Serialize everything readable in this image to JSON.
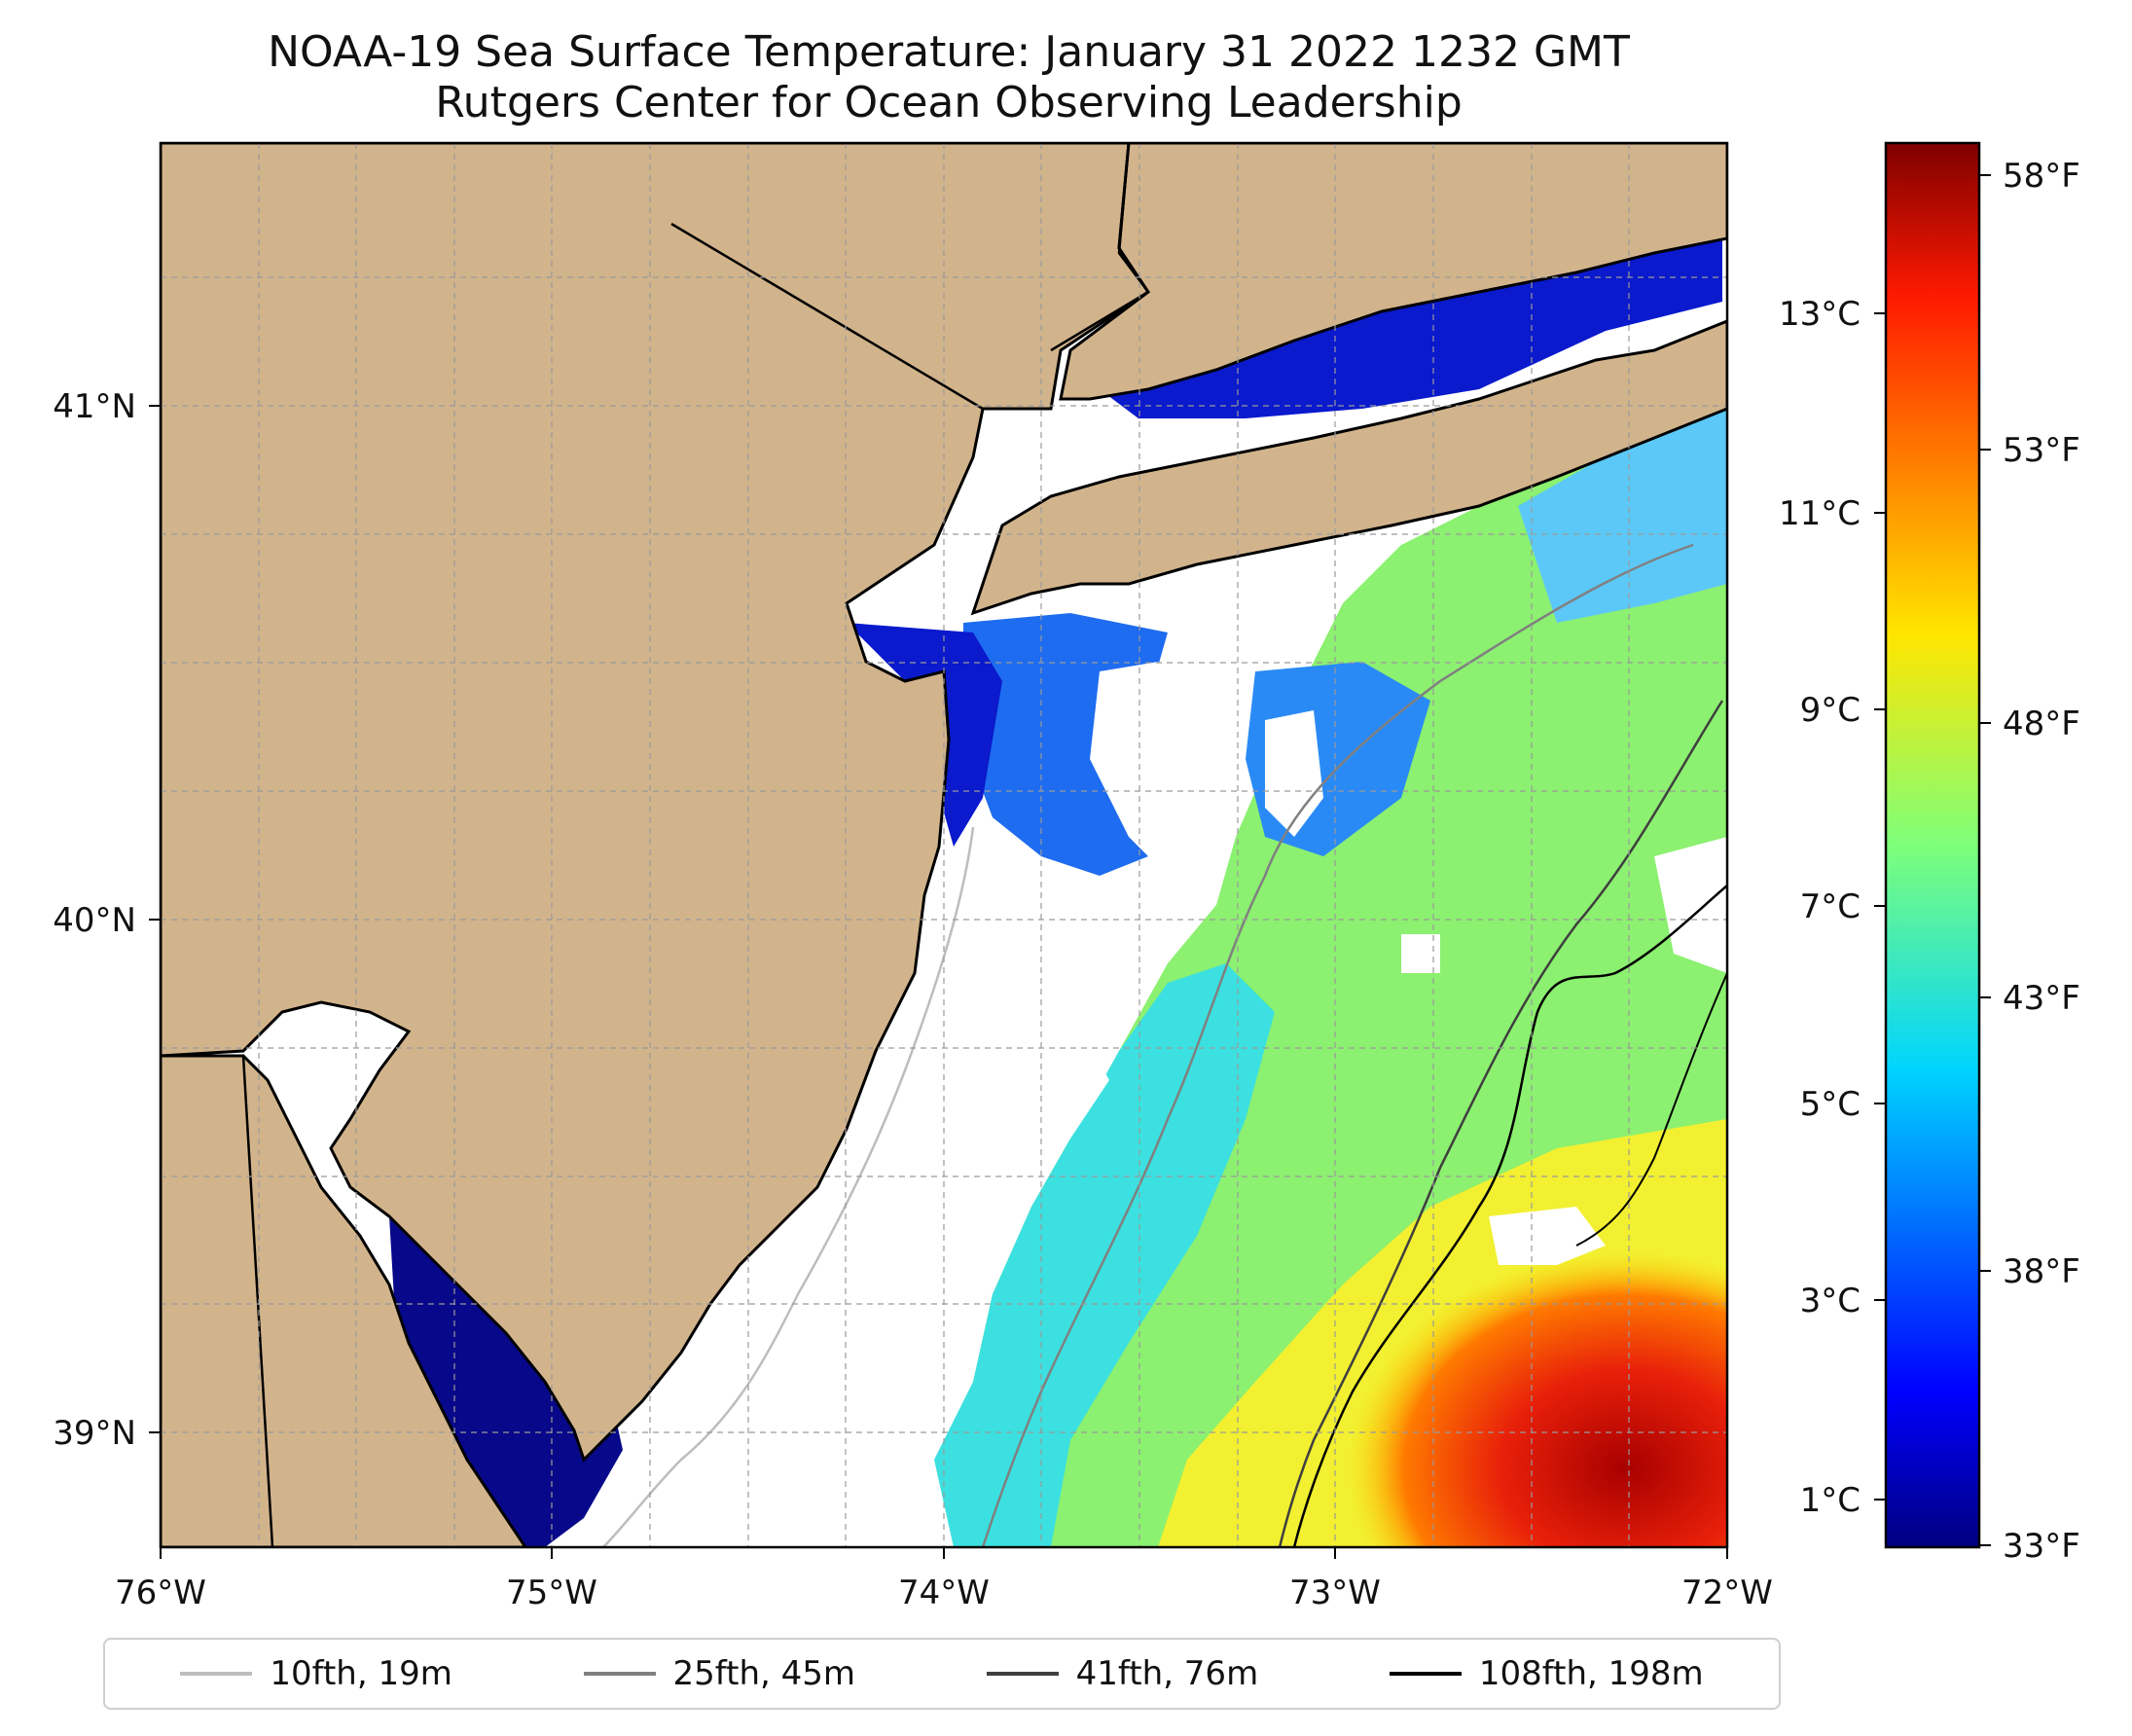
{
  "title": {
    "line1": "NOAA-19 Sea Surface Temperature: January 31 2022 1232 GMT",
    "line2": "Rutgers Center for Ocean Observing Leadership"
  },
  "map": {
    "lon_range": [
      -76,
      -72
    ],
    "lat_range": [
      38.75,
      41.55
    ],
    "lon_ticks": [
      "76°W",
      "75°W",
      "74°W",
      "73°W",
      "72°W"
    ],
    "lat_ticks": [
      "41°N",
      "40°N",
      "39°N"
    ],
    "land_color": "#D2B48C",
    "no_data_color": "#FFFFFF",
    "gridlines": true,
    "regions": "New Jersey, Long Island, Delaware Bay, NY Bight"
  },
  "colorbar": {
    "colormap": "jet",
    "celsius_ticks": [
      "13°C",
      "11°C",
      "9°C",
      "7°C",
      "5°C",
      "3°C",
      "1°C"
    ],
    "fahrenheit_ticks": [
      "58°F",
      "53°F",
      "48°F",
      "43°F",
      "38°F",
      "33°F"
    ],
    "range_f": [
      33,
      59
    ]
  },
  "legend": [
    {
      "label": "10fth, 19m",
      "color": "#BDBDBD"
    },
    {
      "label": "25fth, 45m",
      "color": "#808080"
    },
    {
      "label": "41fth, 76m",
      "color": "#3F3F3F"
    },
    {
      "label": "108fth, 198m",
      "color": "#000000"
    }
  ]
}
